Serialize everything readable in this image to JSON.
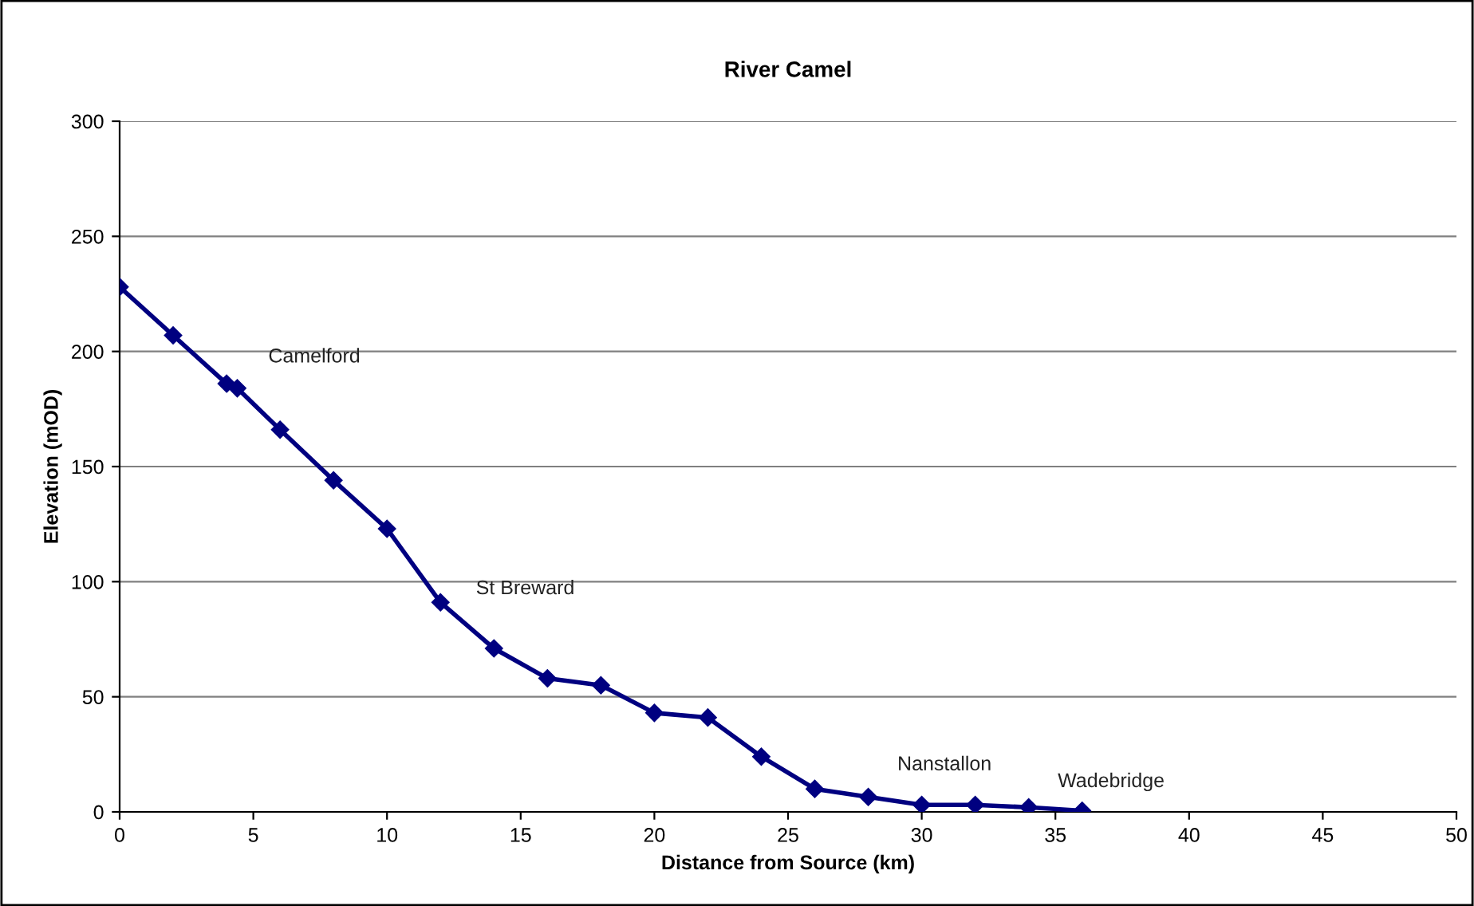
{
  "chart_data": {
    "type": "line",
    "title": "River Camel",
    "xlabel": "Distance from Source (km)",
    "ylabel": "Elevation (mOD)",
    "x": [
      0,
      2,
      4,
      4.4,
      6,
      8,
      10,
      12,
      14,
      16,
      18,
      20,
      22,
      24,
      26,
      28,
      30,
      32,
      34,
      36
    ],
    "series": [
      {
        "color": "#000080",
        "values": [
          228,
          207,
          186,
          184,
          166,
          144,
          123,
          91,
          71,
          58,
          55,
          43,
          41,
          24,
          10,
          6.5,
          3,
          3,
          2,
          0.5
        ]
      }
    ],
    "xlim": [
      0,
      50
    ],
    "xticks": [
      0,
      5,
      10,
      15,
      20,
      25,
      30,
      35,
      40,
      45,
      50
    ],
    "ylim": [
      0,
      300
    ],
    "yticks": [
      0,
      50,
      100,
      150,
      200,
      250,
      300
    ],
    "grid": "y",
    "marker": "diamond",
    "line_style": "solid",
    "annotations": [
      {
        "text": "Camelford",
        "x": 4.4,
        "y": 184
      },
      {
        "text": "St Breward",
        "x": 12,
        "y": 91
      },
      {
        "text": "Nanstallon",
        "x": 30,
        "y": 3
      },
      {
        "text": "Wadebridge",
        "x": 36,
        "y": 0.5
      }
    ]
  }
}
